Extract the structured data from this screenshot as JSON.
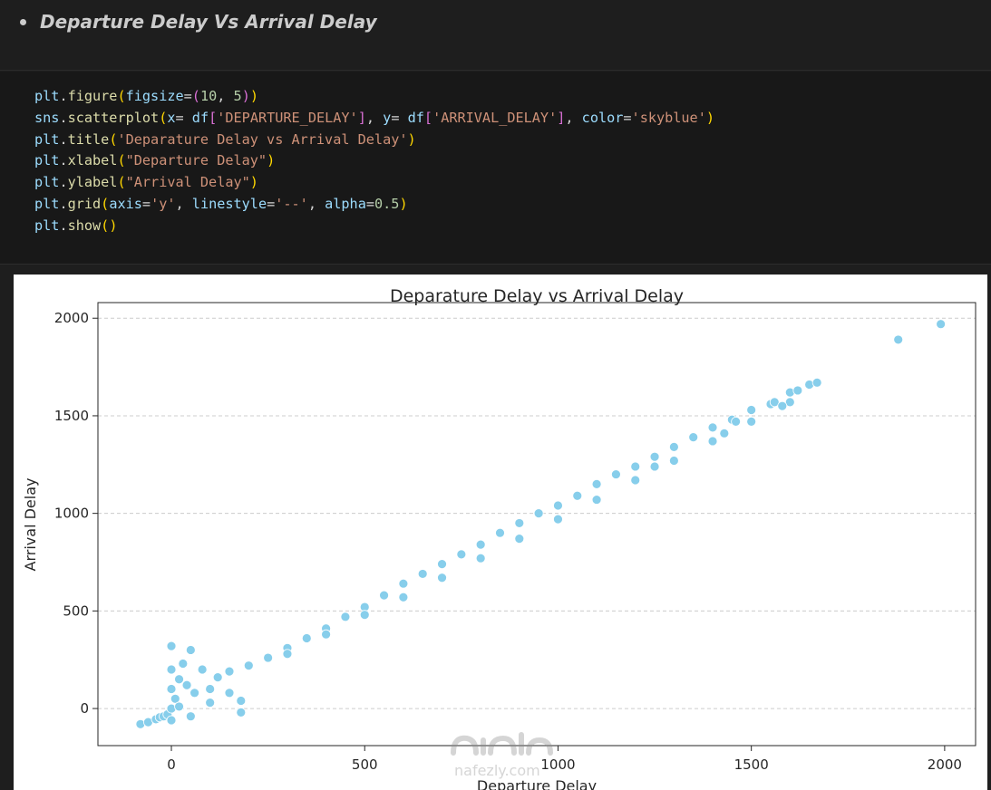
{
  "markdown": {
    "heading": "Departure Delay Vs Arrival Delay"
  },
  "code": {
    "lines": [
      "plt.figure(figsize=(10, 5))",
      "sns.scatterplot(x= df['DEPARTURE_DELAY'], y= df['ARRIVAL_DELAY'], color='skyblue')",
      "plt.title('Deparature Delay vs Arrival Delay')",
      "plt.xlabel(\"Departure Delay\")",
      "plt.ylabel(\"Arrival Delay\")",
      "plt.grid(axis='y', linestyle='--', alpha=0.5)",
      "plt.show()"
    ]
  },
  "watermark": {
    "text": "nafezly.com"
  },
  "colors": {
    "marker": "#87ceeb",
    "marker_edge": "#ffffff",
    "grid": "#cccccc"
  },
  "chart_data": {
    "type": "scatter",
    "title": "Deparature Delay vs Arrival Delay",
    "xlabel": "Departure Delay",
    "ylabel": "Arrival Delay",
    "xlim": [
      -190,
      2080
    ],
    "ylim": [
      -190,
      2080
    ],
    "xticks": [
      0,
      500,
      1000,
      1500,
      2000
    ],
    "yticks": [
      0,
      500,
      1000,
      1500,
      2000
    ],
    "grid": "y",
    "grid_linestyle": "--",
    "series": [
      {
        "x": [
          -80,
          -60,
          -40,
          -30,
          -20,
          -10,
          0,
          0,
          0,
          0,
          10,
          20,
          30,
          40,
          50,
          60,
          80,
          100,
          120,
          150,
          180,
          200,
          250,
          300,
          350,
          400,
          450,
          500,
          550,
          600,
          650,
          700,
          750,
          800,
          850,
          900,
          950,
          1000,
          1050,
          1100,
          1150,
          1200,
          1250,
          1300,
          1350,
          1400,
          1450,
          1500,
          1550,
          1600,
          1650,
          1670,
          1880,
          1990,
          0,
          50,
          100,
          150,
          180,
          20,
          300,
          400,
          500,
          600,
          700,
          800,
          900,
          1000,
          1100,
          1200,
          1300,
          1400,
          1500,
          1600,
          1560,
          1620,
          1580,
          1460,
          1430,
          1250
        ],
        "y": [
          -80,
          -70,
          -55,
          -45,
          -40,
          -30,
          320,
          200,
          100,
          0,
          50,
          150,
          230,
          120,
          300,
          80,
          200,
          100,
          160,
          190,
          -20,
          220,
          260,
          310,
          360,
          410,
          470,
          520,
          580,
          640,
          690,
          740,
          790,
          840,
          900,
          950,
          1000,
          1040,
          1090,
          1150,
          1200,
          1240,
          1290,
          1340,
          1390,
          1440,
          1480,
          1530,
          1560,
          1620,
          1660,
          1670,
          1890,
          1970,
          -60,
          -40,
          30,
          80,
          40,
          10,
          280,
          380,
          480,
          570,
          670,
          770,
          870,
          970,
          1070,
          1170,
          1270,
          1370,
          1470,
          1570,
          1570,
          1630,
          1550,
          1470,
          1410,
          1240
        ]
      }
    ]
  }
}
